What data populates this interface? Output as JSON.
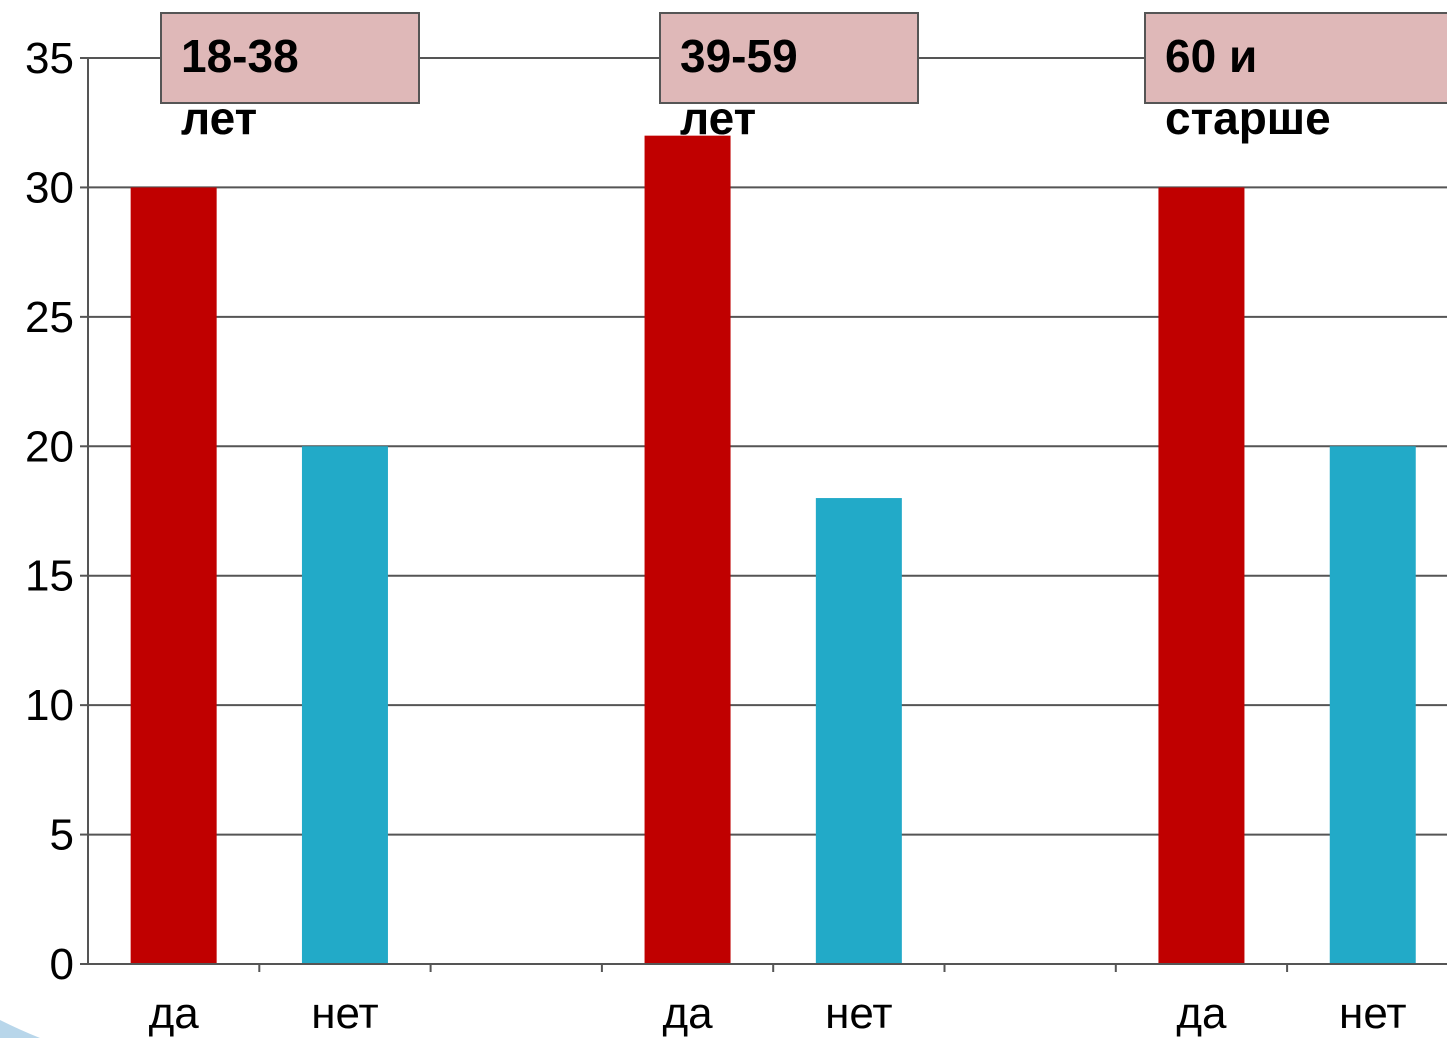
{
  "chart_data": {
    "type": "bar",
    "categories": [
      "да",
      "нет",
      "",
      "да",
      "нет",
      "",
      "да",
      "нет"
    ],
    "values": [
      30,
      20,
      null,
      32,
      18,
      null,
      30,
      20
    ],
    "groups": [
      {
        "label": "18-38 лет",
        "label_line1": "18-38",
        "label_line2": "лет",
        "values": [
          30,
          20
        ]
      },
      {
        "label": "39-59 лет",
        "label_line1": "39-59",
        "label_line2": "лет",
        "values": [
          32,
          18
        ]
      },
      {
        "label": "60 и старше",
        "label_line1": "60 и",
        "label_line2": "старше",
        "values": [
          30,
          20
        ]
      }
    ],
    "bar_colors": [
      "#c00000",
      "#22aac8"
    ],
    "y_ticks": [
      "0",
      "5",
      "10",
      "15",
      "20",
      "25",
      "30",
      "35"
    ],
    "ylim": [
      0,
      35
    ],
    "grid": true,
    "title": "",
    "xlabel": "",
    "ylabel": ""
  },
  "colors": {
    "yes_bar": "#c00000",
    "no_bar": "#22aac8",
    "label_box": "#dfb8b8"
  }
}
